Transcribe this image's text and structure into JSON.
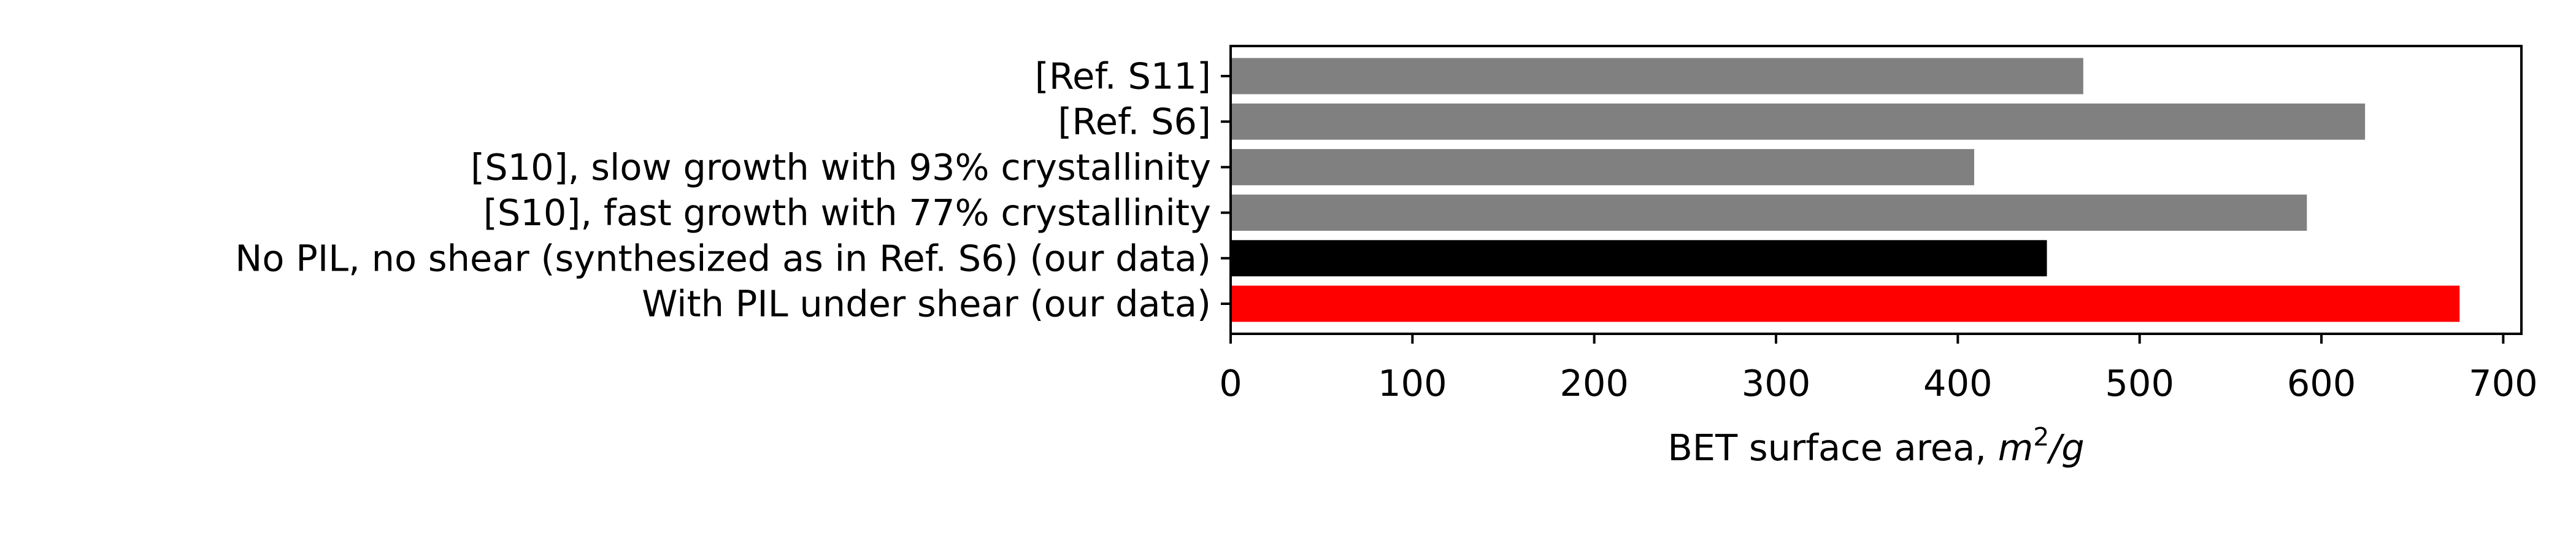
{
  "chart_data": {
    "type": "bar",
    "orientation": "horizontal",
    "categories": [
      "[Ref. S11]",
      "[Ref. S6]",
      "[S10], slow growth with 93% crystallinity",
      "[S10], fast growth with 77% crystallinity",
      "No PIL, no shear (synthesized as in Ref. S6) (our data)",
      "With PIL under shear (our data)"
    ],
    "values": [
      469,
      624,
      409,
      592,
      449,
      676
    ],
    "bar_colors": [
      "#808080",
      "#808080",
      "#808080",
      "#808080",
      "#000000",
      "#ff0000"
    ],
    "xlabel_prefix": "BET surface area, ",
    "xlabel_unit_base": "m",
    "xlabel_unit_exp": "2",
    "xlabel_unit_denominator": "/g",
    "xlim": [
      0,
      710
    ],
    "xticks": [
      0,
      100,
      200,
      300,
      400,
      500,
      600,
      700
    ],
    "grid": false,
    "legend": "none"
  }
}
